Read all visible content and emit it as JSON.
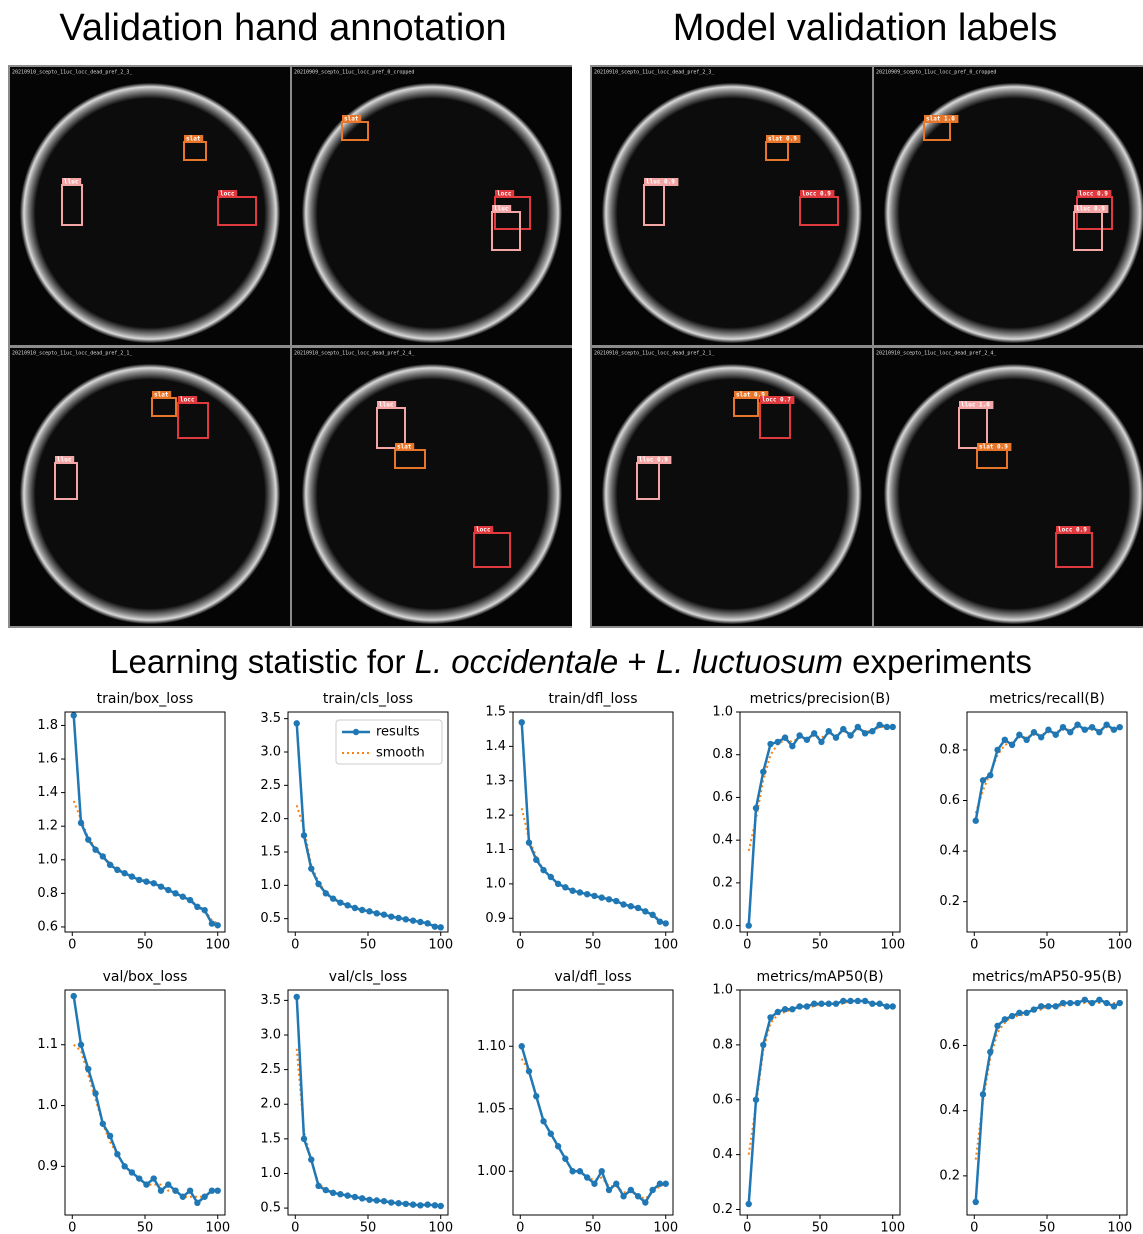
{
  "heading": {
    "parts": [
      "Learning statistic for ",
      "L. occidentale",
      " + ",
      "L. luctuosum",
      " experiments"
    ]
  },
  "images": {
    "panels": [
      {
        "title": "Validation hand annotation",
        "tiles": [
          {
            "filename": "20210910_scepto_11uc_locc_dead_pref_2_3_",
            "boxes": [
              "lluc",
              "slat",
              "locc"
            ]
          },
          {
            "filename": "20210909_scepto_11uc_locc_pref_0_cropped",
            "boxes": [
              "slat",
              "locc",
              "lluc"
            ]
          },
          {
            "filename": "20210910_scepto_11uc_locc_dead_pref_2_1_",
            "boxes": [
              "slat",
              "locc",
              "lluc"
            ]
          },
          {
            "filename": "20210910_scepto_11uc_locc_dead_pref_2_4_",
            "boxes": [
              "lluc",
              "slat",
              "locc"
            ]
          }
        ]
      },
      {
        "title": "Model validation labels",
        "tiles": [
          {
            "filename": "20210910_scepto_11uc_locc_dead_pref_2_3_",
            "boxes": [
              "lluc 0.9",
              "slat 0.9",
              "locc 0.9"
            ]
          },
          {
            "filename": "20210909_scepto_11uc_locc_pref_0_cropped",
            "boxes": [
              "slat 1.0",
              "locc 0.9",
              "lluc 0.9"
            ]
          },
          {
            "filename": "20210910_scepto_11uc_locc_dead_pref_2_1_",
            "boxes": [
              "slat 0.9",
              "locc 0.7",
              "lluc 0.9"
            ]
          },
          {
            "filename": "20210910_scepto_11uc_locc_dead_pref_2_4_",
            "boxes": [
              "lluc 1.0",
              "slat 0.9",
              "locc 0.9"
            ]
          }
        ]
      }
    ]
  },
  "chart_data": [
    {
      "type": "line",
      "title": "train/box_loss",
      "x": [
        1,
        6,
        11,
        16,
        21,
        26,
        31,
        36,
        41,
        46,
        51,
        56,
        61,
        66,
        71,
        76,
        81,
        86,
        91,
        96,
        100
      ],
      "xlim": [
        -5,
        105
      ],
      "xticks": [
        0,
        50,
        100
      ],
      "ylim": [
        0.57,
        1.88
      ],
      "yticks": [
        0.6,
        0.8,
        {
          "value": 1,
          "label": "1.0"
        },
        1.2,
        1.4,
        1.6,
        1.8
      ],
      "legend": false,
      "series": [
        {
          "color": "#1f77b4",
          "values": [
            1.86,
            1.22,
            1.12,
            1.06,
            1.02,
            0.97,
            0.94,
            0.92,
            0.9,
            0.88,
            0.87,
            0.86,
            0.84,
            0.82,
            0.8,
            0.78,
            0.76,
            0.72,
            0.7,
            0.62,
            0.61
          ]
        },
        {
          "color": "#ff7f0e",
          "values": [
            1.35,
            1.24,
            1.13,
            1.07,
            1.02,
            0.98,
            0.95,
            0.92,
            0.9,
            0.89,
            0.87,
            0.86,
            0.84,
            0.82,
            0.8,
            0.78,
            0.76,
            0.73,
            0.7,
            0.64,
            0.62
          ]
        }
      ]
    },
    {
      "type": "line",
      "title": "train/cls_loss",
      "x": [
        1,
        6,
        11,
        16,
        21,
        26,
        31,
        36,
        41,
        46,
        51,
        56,
        61,
        66,
        71,
        76,
        81,
        86,
        91,
        96,
        100
      ],
      "xlim": [
        -5,
        105
      ],
      "xticks": [
        0,
        50,
        100
      ],
      "ylim": [
        0.3,
        3.6
      ],
      "yticks": [
        0.5,
        {
          "value": 1,
          "label": "1.0"
        },
        1.5,
        {
          "value": 2,
          "label": "2.0"
        },
        2.5,
        {
          "value": 3,
          "label": "3.0"
        },
        3.5
      ],
      "legend": "upper right",
      "series": [
        {
          "name": "results",
          "color": "#1f77b4",
          "values": [
            3.43,
            1.75,
            1.25,
            1.02,
            0.88,
            0.8,
            0.74,
            0.7,
            0.66,
            0.63,
            0.61,
            0.58,
            0.56,
            0.53,
            0.51,
            0.49,
            0.47,
            0.45,
            0.43,
            0.38,
            0.37
          ]
        },
        {
          "name": "smooth",
          "color": "#ff7f0e",
          "values": [
            2.2,
            1.85,
            1.3,
            1.05,
            0.9,
            0.81,
            0.75,
            0.7,
            0.66,
            0.63,
            0.61,
            0.58,
            0.56,
            0.53,
            0.51,
            0.49,
            0.47,
            0.45,
            0.43,
            0.39,
            0.37
          ]
        }
      ]
    },
    {
      "type": "line",
      "title": "train/dfl_loss",
      "x": [
        1,
        6,
        11,
        16,
        21,
        26,
        31,
        36,
        41,
        46,
        51,
        56,
        61,
        66,
        71,
        76,
        81,
        86,
        91,
        96,
        100
      ],
      "xlim": [
        -5,
        105
      ],
      "xticks": [
        0,
        50,
        100
      ],
      "ylim": [
        0.86,
        1.5
      ],
      "yticks": [
        0.9,
        {
          "value": 1,
          "label": "1.0"
        },
        1.1,
        1.2,
        1.3,
        1.4,
        1.5
      ],
      "legend": false,
      "series": [
        {
          "color": "#1f77b4",
          "values": [
            1.47,
            1.12,
            1.07,
            1.04,
            1.02,
            1.0,
            0.99,
            0.98,
            0.975,
            0.97,
            0.965,
            0.96,
            0.955,
            0.95,
            0.94,
            0.935,
            0.93,
            0.92,
            0.91,
            0.89,
            0.885
          ]
        },
        {
          "color": "#ff7f0e",
          "values": [
            1.22,
            1.13,
            1.08,
            1.04,
            1.02,
            1.0,
            0.99,
            0.98,
            0.975,
            0.97,
            0.965,
            0.96,
            0.955,
            0.95,
            0.94,
            0.935,
            0.93,
            0.92,
            0.91,
            0.895,
            0.89
          ]
        }
      ]
    },
    {
      "type": "line",
      "title": "metrics/precision(B)",
      "x": [
        1,
        6,
        11,
        16,
        21,
        26,
        31,
        36,
        41,
        46,
        51,
        56,
        61,
        66,
        71,
        76,
        81,
        86,
        91,
        96,
        100
      ],
      "xlim": [
        -5,
        105
      ],
      "xticks": [
        0,
        50,
        100
      ],
      "ylim": [
        -0.03,
        1.0
      ],
      "yticks": [
        {
          "value": 0,
          "label": "0.0"
        },
        0.2,
        0.4,
        0.6,
        0.8,
        {
          "value": 1,
          "label": "1.0"
        }
      ],
      "legend": false,
      "series": [
        {
          "color": "#1f77b4",
          "values": [
            0.0,
            0.55,
            0.72,
            0.85,
            0.86,
            0.88,
            0.84,
            0.89,
            0.87,
            0.9,
            0.86,
            0.91,
            0.88,
            0.92,
            0.89,
            0.93,
            0.9,
            0.91,
            0.94,
            0.93,
            0.93
          ]
        },
        {
          "color": "#ff7f0e",
          "values": [
            0.35,
            0.5,
            0.68,
            0.8,
            0.85,
            0.87,
            0.86,
            0.88,
            0.87,
            0.89,
            0.88,
            0.9,
            0.89,
            0.91,
            0.9,
            0.92,
            0.91,
            0.91,
            0.93,
            0.93,
            0.93
          ]
        }
      ]
    },
    {
      "type": "line",
      "title": "metrics/recall(B)",
      "x": [
        1,
        6,
        11,
        16,
        21,
        26,
        31,
        36,
        41,
        46,
        51,
        56,
        61,
        66,
        71,
        76,
        81,
        86,
        91,
        96,
        100
      ],
      "xlim": [
        -5,
        105
      ],
      "xticks": [
        0,
        50,
        100
      ],
      "ylim": [
        0.08,
        0.95
      ],
      "yticks": [
        0.2,
        0.4,
        0.6,
        0.8
      ],
      "legend": false,
      "series": [
        {
          "color": "#1f77b4",
          "values": [
            0.52,
            0.68,
            0.7,
            0.8,
            0.84,
            0.82,
            0.86,
            0.84,
            0.87,
            0.85,
            0.88,
            0.86,
            0.89,
            0.87,
            0.9,
            0.88,
            0.89,
            0.87,
            0.9,
            0.88,
            0.89
          ]
        },
        {
          "color": "#ff7f0e",
          "values": [
            0.55,
            0.64,
            0.71,
            0.78,
            0.82,
            0.83,
            0.85,
            0.85,
            0.86,
            0.86,
            0.87,
            0.87,
            0.88,
            0.88,
            0.89,
            0.88,
            0.88,
            0.88,
            0.89,
            0.88,
            0.88
          ]
        }
      ]
    },
    {
      "type": "line",
      "title": "val/box_loss",
      "x": [
        1,
        6,
        11,
        16,
        21,
        26,
        31,
        36,
        41,
        46,
        51,
        56,
        61,
        66,
        71,
        76,
        81,
        86,
        91,
        96,
        100
      ],
      "xlim": [
        -5,
        105
      ],
      "xticks": [
        0,
        50,
        100
      ],
      "ylim": [
        0.82,
        1.19
      ],
      "yticks": [
        0.9,
        {
          "value": 1,
          "label": "1.0"
        },
        1.1
      ],
      "legend": false,
      "series": [
        {
          "color": "#1f77b4",
          "values": [
            1.18,
            1.1,
            1.06,
            1.02,
            0.97,
            0.95,
            0.92,
            0.9,
            0.89,
            0.88,
            0.87,
            0.88,
            0.86,
            0.87,
            0.86,
            0.85,
            0.86,
            0.84,
            0.85,
            0.86,
            0.86
          ]
        },
        {
          "color": "#ff7f0e",
          "values": [
            1.1,
            1.09,
            1.05,
            1.01,
            0.97,
            0.94,
            0.92,
            0.9,
            0.89,
            0.88,
            0.87,
            0.87,
            0.87,
            0.86,
            0.86,
            0.85,
            0.85,
            0.85,
            0.85,
            0.86,
            0.86
          ]
        }
      ]
    },
    {
      "type": "line",
      "title": "val/cls_loss",
      "x": [
        1,
        6,
        11,
        16,
        21,
        26,
        31,
        36,
        41,
        46,
        51,
        56,
        61,
        66,
        71,
        76,
        81,
        86,
        91,
        96,
        100
      ],
      "xlim": [
        -5,
        105
      ],
      "xticks": [
        0,
        50,
        100
      ],
      "ylim": [
        0.4,
        3.65
      ],
      "yticks": [
        0.5,
        {
          "value": 1,
          "label": "1.0"
        },
        1.5,
        {
          "value": 2,
          "label": "2.0"
        },
        2.5,
        {
          "value": 3,
          "label": "3.0"
        },
        3.5
      ],
      "legend": false,
      "series": [
        {
          "color": "#1f77b4",
          "values": [
            3.55,
            1.5,
            1.2,
            0.82,
            0.76,
            0.72,
            0.7,
            0.68,
            0.66,
            0.64,
            0.62,
            0.61,
            0.6,
            0.58,
            0.57,
            0.56,
            0.55,
            0.54,
            0.55,
            0.54,
            0.53
          ]
        },
        {
          "color": "#ff7f0e",
          "values": [
            2.8,
            1.6,
            1.2,
            0.85,
            0.77,
            0.73,
            0.7,
            0.68,
            0.66,
            0.64,
            0.62,
            0.61,
            0.6,
            0.58,
            0.57,
            0.56,
            0.55,
            0.55,
            0.55,
            0.54,
            0.53
          ]
        }
      ]
    },
    {
      "type": "line",
      "title": "val/dfl_loss",
      "x": [
        1,
        6,
        11,
        16,
        21,
        26,
        31,
        36,
        41,
        46,
        51,
        56,
        61,
        66,
        71,
        76,
        81,
        86,
        91,
        96,
        100
      ],
      "xlim": [
        -5,
        105
      ],
      "xticks": [
        0,
        50,
        100
      ],
      "ylim": [
        0.965,
        1.145
      ],
      "yticks": [
        {
          "value": 1,
          "label": "1.00"
        },
        1.05,
        {
          "value": 1.1,
          "label": "1.10"
        }
      ],
      "legend": false,
      "series": [
        {
          "color": "#1f77b4",
          "values": [
            1.1,
            1.08,
            1.06,
            1.04,
            1.03,
            1.02,
            1.01,
            1.0,
            1.0,
            0.995,
            0.99,
            1.0,
            0.985,
            0.99,
            0.98,
            0.985,
            0.98,
            0.975,
            0.985,
            0.99,
            0.99
          ]
        },
        {
          "color": "#ff7f0e",
          "values": [
            1.09,
            1.08,
            1.06,
            1.04,
            1.03,
            1.02,
            1.01,
            1.0,
            1.0,
            0.995,
            0.993,
            0.995,
            0.988,
            0.988,
            0.983,
            0.984,
            0.98,
            0.978,
            0.983,
            0.988,
            0.99
          ]
        }
      ]
    },
    {
      "type": "line",
      "title": "metrics/mAP50(B)",
      "x": [
        1,
        6,
        11,
        16,
        21,
        26,
        31,
        36,
        41,
        46,
        51,
        56,
        61,
        66,
        71,
        76,
        81,
        86,
        91,
        96,
        100
      ],
      "xlim": [
        -5,
        105
      ],
      "xticks": [
        0,
        50,
        100
      ],
      "ylim": [
        0.18,
        1.0
      ],
      "yticks": [
        0.2,
        0.4,
        0.6,
        0.8,
        {
          "value": 1,
          "label": "1.0"
        }
      ],
      "legend": false,
      "series": [
        {
          "color": "#1f77b4",
          "values": [
            0.22,
            0.6,
            0.8,
            0.9,
            0.92,
            0.93,
            0.93,
            0.94,
            0.94,
            0.95,
            0.95,
            0.95,
            0.95,
            0.96,
            0.96,
            0.96,
            0.96,
            0.95,
            0.95,
            0.94,
            0.94
          ]
        },
        {
          "color": "#ff7f0e",
          "values": [
            0.4,
            0.58,
            0.78,
            0.88,
            0.91,
            0.92,
            0.93,
            0.94,
            0.94,
            0.94,
            0.95,
            0.95,
            0.95,
            0.95,
            0.96,
            0.96,
            0.96,
            0.95,
            0.95,
            0.94,
            0.94
          ]
        }
      ]
    },
    {
      "type": "line",
      "title": "metrics/mAP50-95(B)",
      "x": [
        1,
        6,
        11,
        16,
        21,
        26,
        31,
        36,
        41,
        46,
        51,
        56,
        61,
        66,
        71,
        76,
        81,
        86,
        91,
        96,
        100
      ],
      "xlim": [
        -5,
        105
      ],
      "xticks": [
        0,
        50,
        100
      ],
      "ylim": [
        0.08,
        0.77
      ],
      "yticks": [
        0.2,
        0.4,
        0.6
      ],
      "legend": false,
      "series": [
        {
          "color": "#1f77b4",
          "values": [
            0.12,
            0.45,
            0.58,
            0.66,
            0.68,
            0.69,
            0.7,
            0.7,
            0.71,
            0.72,
            0.72,
            0.72,
            0.73,
            0.73,
            0.73,
            0.74,
            0.73,
            0.74,
            0.73,
            0.72,
            0.73
          ]
        },
        {
          "color": "#ff7f0e",
          "values": [
            0.25,
            0.43,
            0.56,
            0.64,
            0.67,
            0.69,
            0.69,
            0.7,
            0.71,
            0.71,
            0.72,
            0.72,
            0.72,
            0.73,
            0.73,
            0.73,
            0.73,
            0.73,
            0.73,
            0.73,
            0.73
          ]
        }
      ]
    }
  ]
}
